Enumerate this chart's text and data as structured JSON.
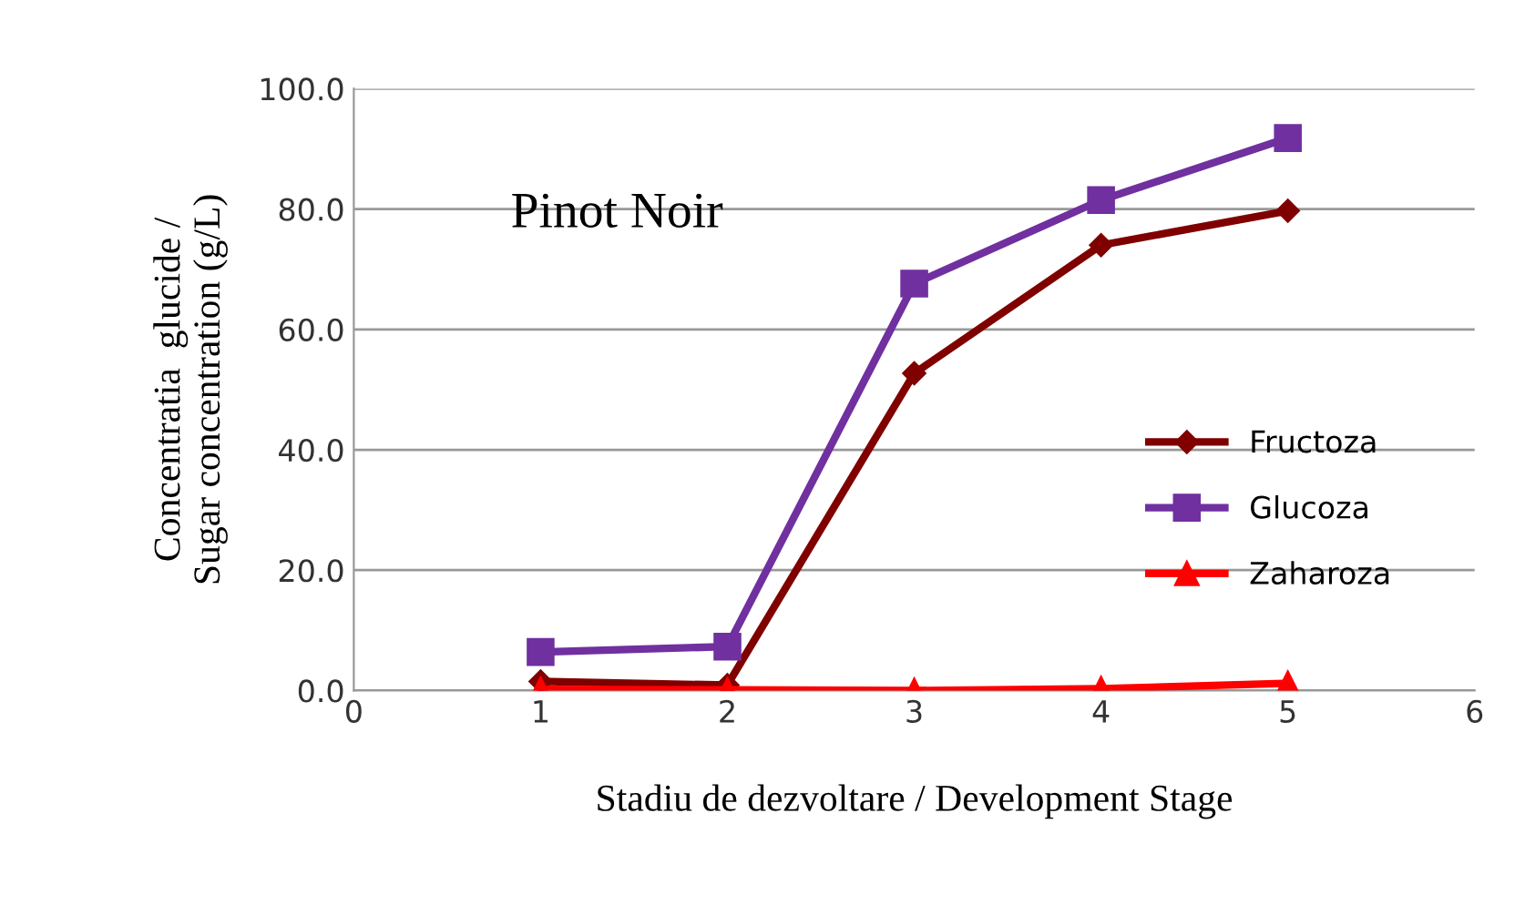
{
  "chart_data": {
    "type": "line",
    "title": "Pinot Noir",
    "xlabel": "Stadiu de dezvoltare / Development Stage",
    "ylabel": "Concentratia  glucide /\nSugar concentration (g/L)",
    "x": [
      1,
      2,
      3,
      4,
      5
    ],
    "series": [
      {
        "name": "Fructoza",
        "color": "#800000",
        "marker": "diamond",
        "values": [
          1.5,
          0.9,
          52.7,
          74.0,
          79.7
        ]
      },
      {
        "name": "Glucoza",
        "color": "#7030a0",
        "marker": "square",
        "values": [
          6.4,
          7.3,
          67.6,
          81.5,
          91.8
        ]
      },
      {
        "name": "Zaharoza",
        "color": "#ff0000",
        "marker": "triangle",
        "values": [
          0.2,
          0.1,
          0.0,
          0.3,
          1.2
        ]
      }
    ],
    "xlim": [
      0,
      6
    ],
    "xticks": [
      0,
      1,
      2,
      3,
      4,
      5,
      6
    ],
    "ylim": [
      0,
      100
    ],
    "yticks": [
      {
        "value": 0,
        "label": "0.0"
      },
      {
        "value": 20,
        "label": "20.0"
      },
      {
        "value": 40,
        "label": "40.0"
      },
      {
        "value": 60,
        "label": "60.0"
      },
      {
        "value": 80,
        "label": "80.0"
      },
      {
        "value": 100,
        "label": "100.0"
      }
    ],
    "grid": "y",
    "legend": "right",
    "line_style": "solid"
  }
}
